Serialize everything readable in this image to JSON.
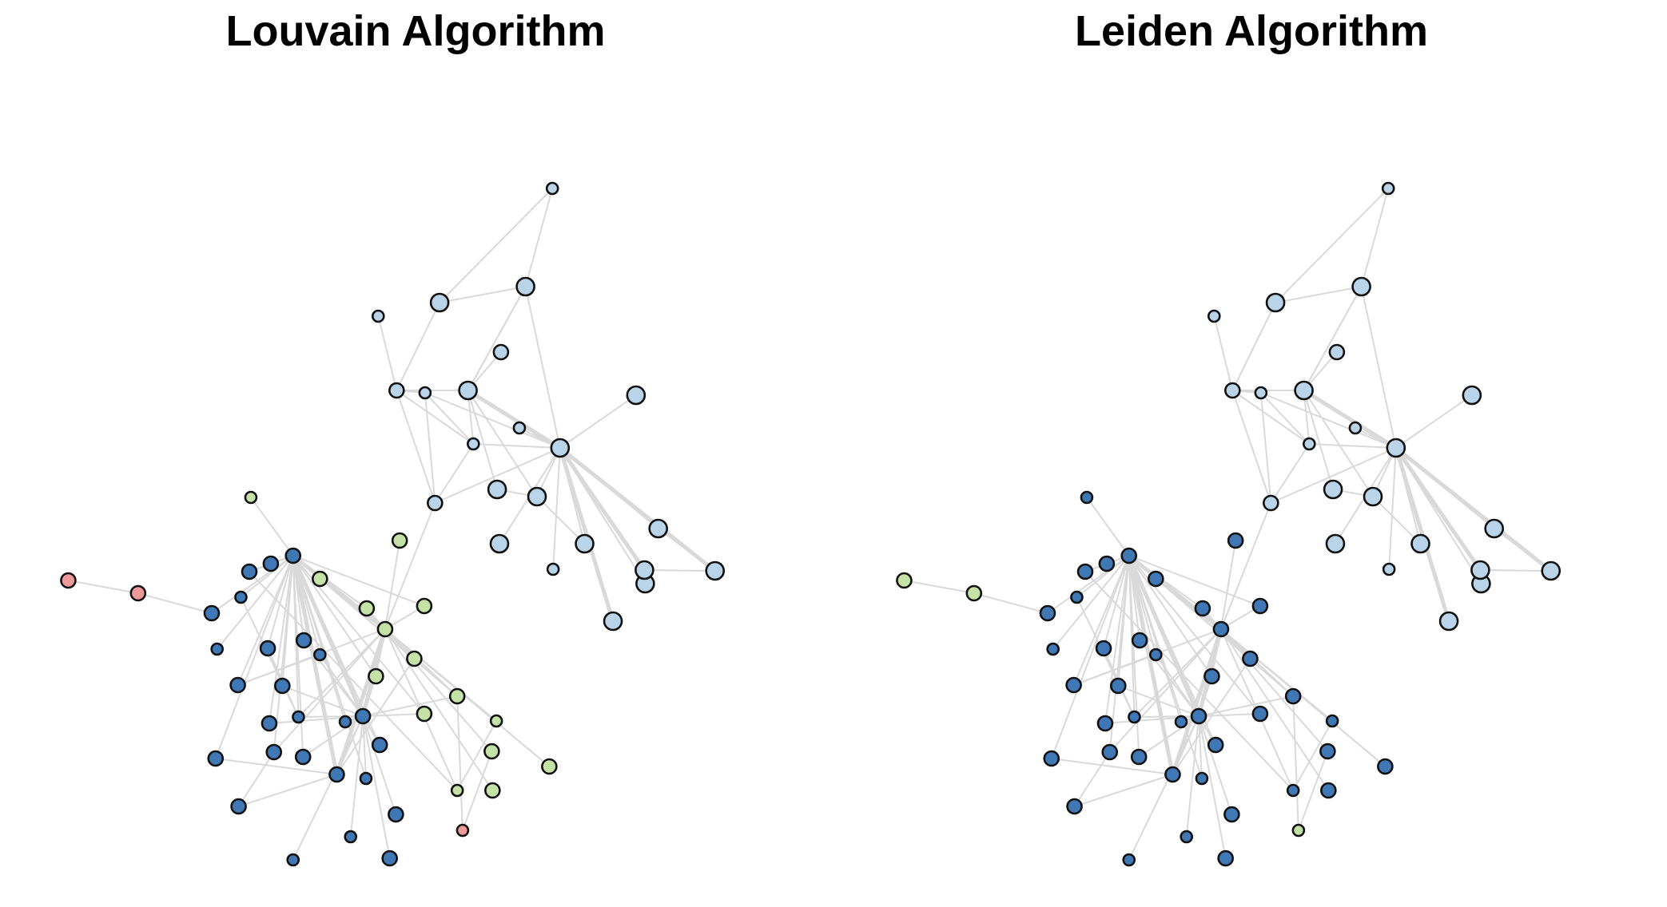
{
  "panels": [
    {
      "title": "Louvain Algorithm",
      "community_of_node": {
        "n0": "light",
        "n1": "light",
        "n2": "light",
        "n3": "light",
        "n4": "light",
        "n5": "light",
        "n6": "light",
        "n7": "light",
        "n8": "light",
        "n9": "light",
        "n10": "light",
        "n11": "light",
        "n12": "light",
        "n13": "light",
        "n14": "light",
        "n15": "light",
        "n16": "light",
        "n17": "light",
        "n18": "light",
        "n19": "light",
        "n20": "light",
        "n21": "light",
        "n22": "light",
        "n23": "green",
        "n24": "green",
        "n25": "green",
        "n26": "green",
        "n27": "green",
        "n28": "green",
        "n29": "green",
        "n30": "green",
        "n31": "green",
        "n32": "green",
        "n33": "green",
        "n34": "green",
        "n35": "green",
        "n36": "green",
        "n37": "green",
        "n38": "red",
        "n39": "red",
        "n40": "red",
        "n41": "dark",
        "n42": "dark",
        "n43": "dark",
        "n44": "dark",
        "n45": "dark",
        "n46": "dark",
        "n47": "dark",
        "n48": "dark",
        "n49": "dark",
        "n50": "dark",
        "n51": "dark",
        "n52": "dark",
        "n53": "dark",
        "n54": "dark",
        "n55": "dark",
        "n56": "dark",
        "n57": "dark",
        "n58": "dark",
        "n59": "dark",
        "n60": "dark",
        "n61": "dark",
        "n62": "dark",
        "n63": "dark",
        "n64": "dark",
        "n65": "dark",
        "n66": "dark"
      }
    },
    {
      "title": "Leiden Algorithm",
      "community_of_node": {
        "n0": "light",
        "n1": "light",
        "n2": "light",
        "n3": "light",
        "n4": "light",
        "n5": "light",
        "n6": "light",
        "n7": "light",
        "n8": "light",
        "n9": "light",
        "n10": "light",
        "n11": "light",
        "n12": "light",
        "n13": "light",
        "n14": "light",
        "n15": "light",
        "n16": "light",
        "n17": "light",
        "n18": "light",
        "n19": "light",
        "n20": "light",
        "n21": "light",
        "n22": "light",
        "n23": "dark",
        "n24": "dark",
        "n25": "dark",
        "n26": "dark",
        "n27": "dark",
        "n28": "dark",
        "n29": "dark",
        "n30": "dark",
        "n31": "dark",
        "n32": "dark",
        "n33": "dark",
        "n34": "dark",
        "n35": "dark",
        "n36": "dark",
        "n37": "dark",
        "n38": "green",
        "n39": "green",
        "n40": "green",
        "n41": "dark",
        "n42": "dark",
        "n43": "dark",
        "n44": "dark",
        "n45": "dark",
        "n46": "dark",
        "n47": "dark",
        "n48": "dark",
        "n49": "dark",
        "n50": "dark",
        "n51": "dark",
        "n52": "dark",
        "n53": "dark",
        "n54": "dark",
        "n55": "dark",
        "n56": "dark",
        "n57": "dark",
        "n58": "dark",
        "n59": "dark",
        "n60": "dark",
        "n61": "dark",
        "n62": "dark",
        "n63": "dark",
        "n64": "dark",
        "n65": "dark",
        "n66": "dark"
      }
    }
  ],
  "colors": {
    "light": "#b9d3e8",
    "dark": "#3f78b4",
    "green": "#c4e2a6",
    "red": "#ef9a9a",
    "edge": "#d9d9d9",
    "outline": "#111111"
  }
}
